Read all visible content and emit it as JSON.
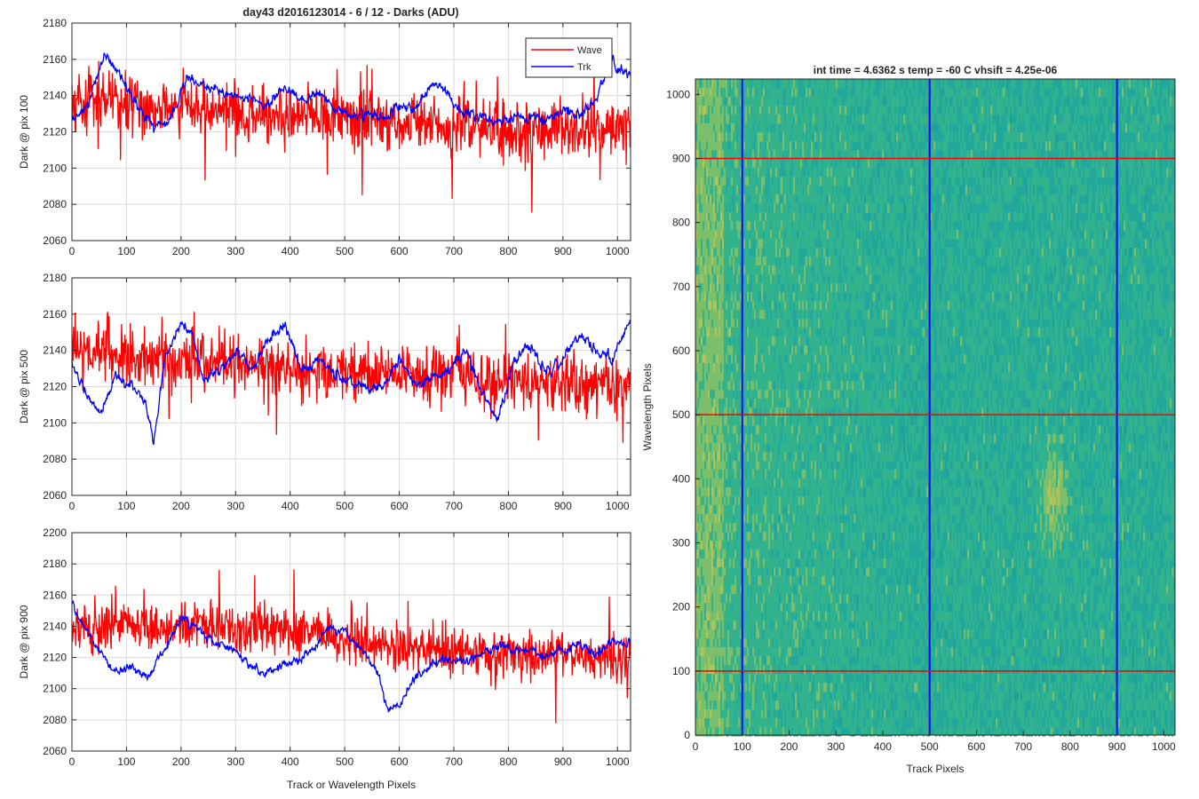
{
  "figure_title": "day43 d2016123014 - 6 / 12 - Darks (ADU)",
  "colors": {
    "wave": "#ff0000",
    "trk": "#0000ff",
    "grid": "#d9d9d9",
    "axis": "#262626"
  },
  "chart_data": [
    {
      "type": "line",
      "title": "day43 d2016123014 - 6 / 12 - Darks (ADU)",
      "xlabel": "",
      "ylabel": "Dark @ pix 100",
      "xlim": [
        0,
        1024
      ],
      "ylim": [
        2060,
        2180
      ],
      "xticks": [
        0,
        100,
        200,
        300,
        400,
        500,
        600,
        700,
        800,
        900,
        1000
      ],
      "yticks": [
        2060,
        2080,
        2100,
        2120,
        2140,
        2160,
        2180
      ],
      "grid": true,
      "legend": {
        "placement": "top-right",
        "entries": [
          "Wave",
          "Trk"
        ]
      },
      "series": [
        {
          "name": "Wave",
          "color": "#ff0000",
          "mean": 2132,
          "noise": 11,
          "x": [
            0,
            50,
            100,
            150,
            200,
            250,
            300,
            350,
            400,
            450,
            500,
            550,
            600,
            650,
            700,
            750,
            800,
            850,
            900,
            950,
            1000,
            1023
          ],
          "y": [
            2135,
            2140,
            2136,
            2132,
            2134,
            2133,
            2131,
            2130,
            2129,
            2129,
            2128,
            2126,
            2124,
            2124,
            2122,
            2122,
            2121,
            2122,
            2121,
            2120,
            2122,
            2122
          ]
        },
        {
          "name": "Trk",
          "color": "#0000ff",
          "mean": 2135,
          "noise": 4,
          "x": [
            0,
            30,
            60,
            90,
            120,
            150,
            180,
            210,
            240,
            270,
            300,
            330,
            360,
            390,
            420,
            450,
            480,
            510,
            540,
            570,
            600,
            630,
            660,
            690,
            720,
            750,
            780,
            810,
            840,
            870,
            900,
            930,
            960,
            990,
            1023
          ],
          "y": [
            2125,
            2135,
            2163,
            2150,
            2135,
            2123,
            2126,
            2150,
            2145,
            2142,
            2140,
            2138,
            2135,
            2145,
            2138,
            2142,
            2135,
            2128,
            2130,
            2127,
            2135,
            2132,
            2148,
            2140,
            2130,
            2130,
            2125,
            2128,
            2128,
            2126,
            2133,
            2128,
            2140,
            2158,
            2150
          ]
        }
      ]
    },
    {
      "type": "line",
      "xlabel": "",
      "ylabel": "Dark @ pix 500",
      "xlim": [
        0,
        1024
      ],
      "ylim": [
        2060,
        2180
      ],
      "xticks": [
        0,
        100,
        200,
        300,
        400,
        500,
        600,
        700,
        800,
        900,
        1000
      ],
      "yticks": [
        2060,
        2080,
        2100,
        2120,
        2140,
        2160,
        2180
      ],
      "grid": true,
      "series": [
        {
          "name": "Wave",
          "color": "#ff0000",
          "mean": 2132,
          "noise": 11,
          "x": [
            0,
            50,
            100,
            150,
            200,
            250,
            300,
            350,
            400,
            450,
            500,
            550,
            600,
            650,
            700,
            750,
            800,
            850,
            900,
            950,
            1000,
            1023
          ],
          "y": [
            2140,
            2140,
            2138,
            2136,
            2134,
            2133,
            2132,
            2131,
            2130,
            2129,
            2128,
            2128,
            2127,
            2126,
            2126,
            2125,
            2124,
            2123,
            2122,
            2121,
            2120,
            2118
          ]
        },
        {
          "name": "Trk",
          "color": "#0000ff",
          "mean": 2130,
          "noise": 4,
          "x": [
            0,
            20,
            50,
            80,
            110,
            130,
            150,
            170,
            200,
            220,
            240,
            270,
            300,
            330,
            360,
            390,
            420,
            450,
            480,
            510,
            540,
            570,
            600,
            630,
            660,
            690,
            720,
            750,
            780,
            810,
            840,
            870,
            900,
            930,
            960,
            990,
            1023
          ],
          "y": [
            2135,
            2118,
            2105,
            2125,
            2120,
            2115,
            2090,
            2135,
            2155,
            2150,
            2125,
            2128,
            2140,
            2130,
            2145,
            2155,
            2130,
            2135,
            2128,
            2123,
            2120,
            2118,
            2135,
            2120,
            2125,
            2128,
            2140,
            2118,
            2100,
            2135,
            2142,
            2128,
            2135,
            2150,
            2140,
            2135,
            2155
          ]
        }
      ]
    },
    {
      "type": "line",
      "xlabel": "Track or Wavelength Pixels",
      "ylabel": "Dark @ pix 900",
      "xlim": [
        0,
        1024
      ],
      "ylim": [
        2060,
        2200
      ],
      "xticks": [
        0,
        100,
        200,
        300,
        400,
        500,
        600,
        700,
        800,
        900,
        1000
      ],
      "yticks": [
        2060,
        2080,
        2100,
        2120,
        2140,
        2160,
        2180,
        2200
      ],
      "grid": true,
      "series": [
        {
          "name": "Wave",
          "color": "#ff0000",
          "mean": 2132,
          "noise": 11,
          "x": [
            0,
            50,
            100,
            150,
            200,
            250,
            300,
            350,
            400,
            450,
            500,
            550,
            600,
            650,
            700,
            750,
            800,
            850,
            900,
            950,
            1000,
            1023
          ],
          "y": [
            2135,
            2140,
            2142,
            2138,
            2140,
            2142,
            2138,
            2140,
            2136,
            2136,
            2130,
            2128,
            2126,
            2126,
            2124,
            2124,
            2122,
            2122,
            2122,
            2121,
            2120,
            2118
          ]
        },
        {
          "name": "Trk",
          "color": "#0000ff",
          "mean": 2125,
          "noise": 4,
          "x": [
            0,
            20,
            50,
            80,
            110,
            140,
            170,
            200,
            230,
            260,
            290,
            320,
            350,
            380,
            410,
            440,
            470,
            500,
            530,
            560,
            580,
            600,
            630,
            660,
            690,
            720,
            750,
            780,
            810,
            840,
            870,
            900,
            930,
            960,
            990,
            1023
          ],
          "y": [
            2155,
            2140,
            2125,
            2110,
            2115,
            2108,
            2125,
            2145,
            2138,
            2130,
            2125,
            2118,
            2108,
            2115,
            2118,
            2125,
            2140,
            2135,
            2125,
            2110,
            2085,
            2090,
            2108,
            2115,
            2120,
            2118,
            2122,
            2128,
            2125,
            2125,
            2120,
            2125,
            2128,
            2122,
            2130,
            2128
          ]
        }
      ]
    },
    {
      "type": "heatmap",
      "title": "int time = 4.6362 s    temp = -60 C    vhsift = 4.25e-06",
      "xlabel": "Track Pixels",
      "ylabel": "Wavelength Pixels",
      "xlim": [
        0,
        1024
      ],
      "ylim": [
        0,
        1024
      ],
      "xticks": [
        0,
        100,
        200,
        300,
        400,
        500,
        600,
        700,
        800,
        900,
        1000
      ],
      "yticks": [
        0,
        100,
        200,
        300,
        400,
        500,
        600,
        700,
        800,
        900,
        1000
      ],
      "colormap": [
        "#1f9e9a",
        "#21a89a",
        "#33b38b",
        "#7cbf6a",
        "#b0c25a",
        "#c9b94c"
      ],
      "vertical_lines": {
        "x": [
          100,
          500,
          900
        ],
        "color": "#0000ff"
      },
      "horizontal_lines": {
        "y": [
          100,
          500,
          900
        ],
        "color": "#ff0000"
      },
      "features": [
        {
          "kind": "warm-blob",
          "x": [
            740,
            790
          ],
          "y": [
            300,
            460
          ]
        },
        {
          "kind": "warm-edge",
          "x": [
            0,
            60
          ],
          "y": [
            0,
            1024
          ]
        }
      ]
    }
  ]
}
